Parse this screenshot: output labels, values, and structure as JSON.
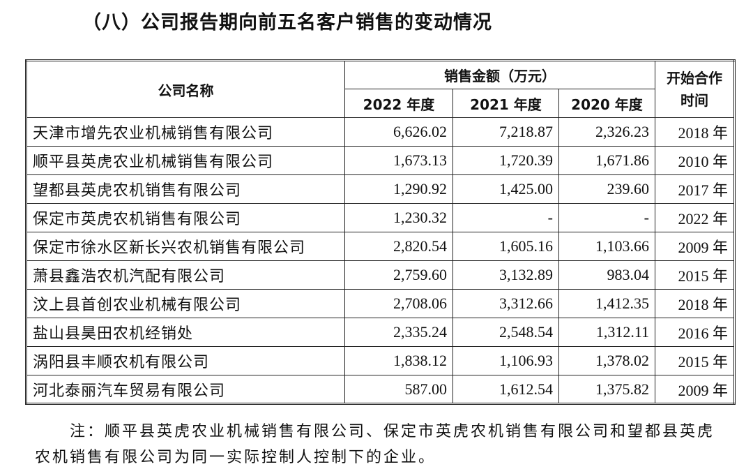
{
  "title": "（八）公司报告期向前五名客户销售的变动情况",
  "table": {
    "header": {
      "name": "公司名称",
      "sales": "销售金额（万元）",
      "years": [
        "2022 年度",
        "2021 年度",
        "2020 年度"
      ],
      "start": "开始合作时间"
    },
    "rows": [
      [
        "天津市增先农业机械销售有限公司",
        "6,626.02",
        "7,218.87",
        "2,326.23",
        "2018 年"
      ],
      [
        "顺平县英虎农业机械销售有限公司",
        "1,673.13",
        "1,720.39",
        "1,671.86",
        "2010 年"
      ],
      [
        "望都县英虎农机销售有限公司",
        "1,290.92",
        "1,425.00",
        "239.60",
        "2017 年"
      ],
      [
        "保定市英虎农机销售有限公司",
        "1,230.32",
        "-",
        "-",
        "2022 年"
      ],
      [
        "保定市徐水区新长兴农机销售有限公司",
        "2,820.54",
        "1,605.16",
        "1,103.66",
        "2009 年"
      ],
      [
        "萧县鑫浩农机汽配有限公司",
        "2,759.60",
        "3,132.89",
        "983.04",
        "2015 年"
      ],
      [
        "汶上县首创农业机械有限公司",
        "2,708.06",
        "3,312.66",
        "1,412.35",
        "2018 年"
      ],
      [
        "盐山县昊田农机经销处",
        "2,335.24",
        "2,548.54",
        "1,312.11",
        "2016 年"
      ],
      [
        "涡阳县丰顺农机有限公司",
        "1,838.12",
        "1,106.93",
        "1,378.02",
        "2015 年"
      ],
      [
        "河北泰丽汽车贸易有限公司",
        "587.00",
        "1,612.54",
        "1,375.82",
        "2009 年"
      ]
    ]
  },
  "note": [
    "注：顺平县英虎农业机械销售有限公司、保定市英虎农机销售有限公司和望都县英虎",
    "农机销售有限公司为同一实际控制人控制下的企业。"
  ]
}
